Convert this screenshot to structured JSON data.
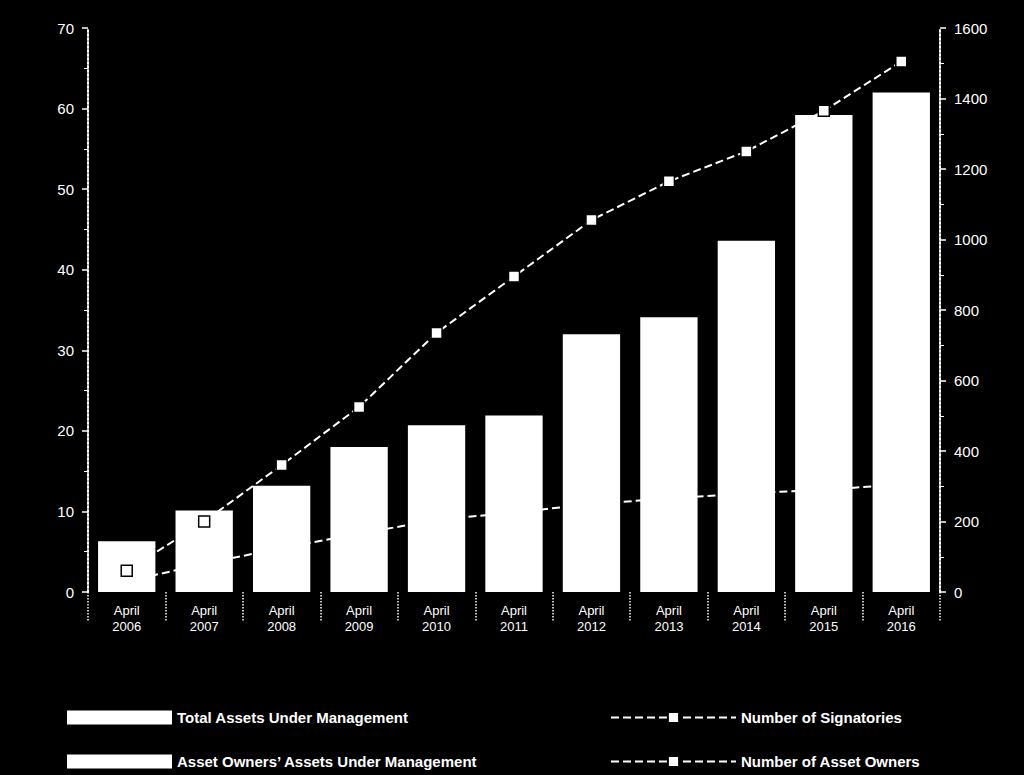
{
  "chart_data": {
    "type": "bar",
    "categories": [
      "April\n2006",
      "April\n2007",
      "April\n2008",
      "April\n2009",
      "April\n2010",
      "April\n2011",
      "April\n2012",
      "April\n2013",
      "April\n2014",
      "April\n2015",
      "April\n2016"
    ],
    "series": [
      {
        "name": "Total Assets Under Management",
        "type": "bar",
        "color": "#ffffff",
        "values": [
          6.3,
          10.1,
          13.2,
          18,
          20.7,
          21.9,
          32,
          34.1,
          43.6,
          59.2,
          62
        ]
      },
      {
        "name": "Asset Owners’ Assets Under Management",
        "type": "bar",
        "color": "#ffffff",
        "values": [
          null,
          null,
          null,
          null,
          null,
          null,
          null,
          null,
          null,
          null,
          null
        ]
      },
      {
        "name": "Number of Signatories",
        "type": "line",
        "axis": "y2",
        "color": "#ffffff",
        "marker": "square",
        "line_style": "dashed",
        "values": [
          60,
          200,
          360,
          525,
          735,
          895,
          1055,
          1165,
          1250,
          1365,
          1505
        ]
      },
      {
        "name": "Number of Asset Owners",
        "type": "line",
        "axis": "y2",
        "color": "#ffffff",
        "marker": "square",
        "line_style": "dashed",
        "values": [
          30,
          80,
          125,
          165,
          205,
          225,
          250,
          265,
          280,
          290,
          305
        ]
      }
    ],
    "ylim": [
      0,
      70
    ],
    "yticks": [
      0,
      10,
      20,
      30,
      40,
      50,
      60,
      70
    ],
    "y2lim": [
      0,
      1600
    ],
    "y2ticks": [
      0,
      200,
      400,
      600,
      800,
      1000,
      1200,
      1400,
      1600
    ],
    "grid": false,
    "legend": "bottom"
  }
}
